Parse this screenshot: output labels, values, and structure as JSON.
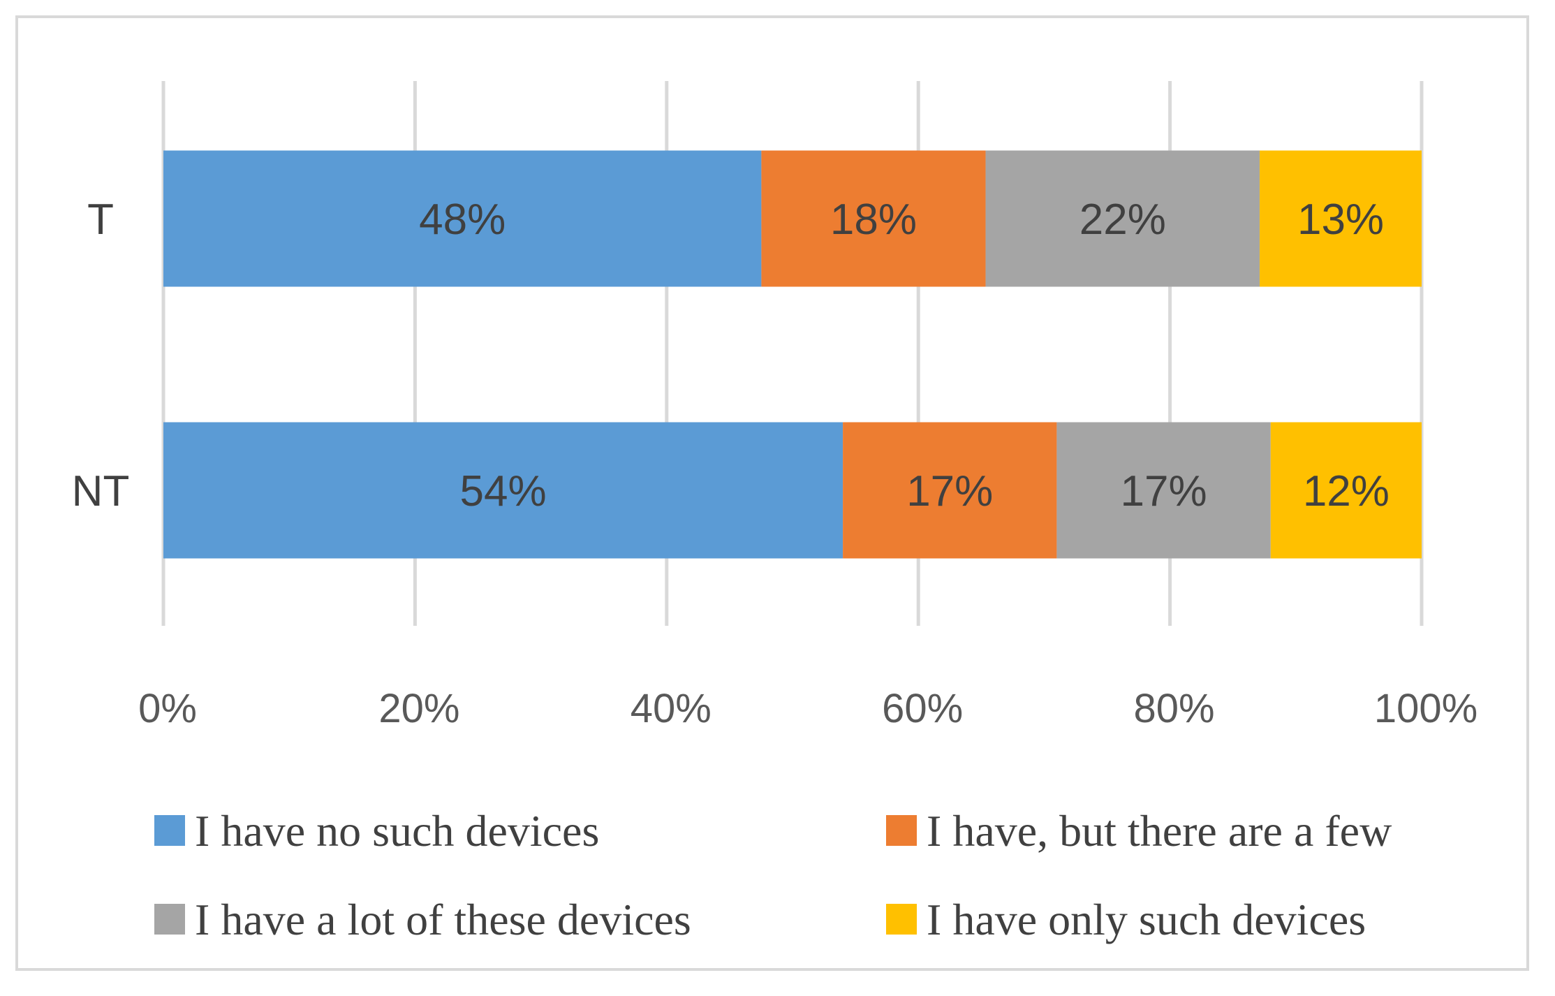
{
  "chart_data": {
    "type": "bar",
    "orientation": "horizontal",
    "stacked": "percent",
    "categories": [
      "T",
      "NT"
    ],
    "series": [
      {
        "name": "I have no such devices",
        "values": [
          48,
          54
        ],
        "labels": [
          "48%",
          "54%"
        ],
        "color": "#5b9bd5"
      },
      {
        "name": "I have, but there are a few",
        "values": [
          18,
          17
        ],
        "labels": [
          "18%",
          "17%"
        ],
        "color": "#ed7d31"
      },
      {
        "name": "I have a lot of these devices",
        "values": [
          22,
          17
        ],
        "labels": [
          "22%",
          "17%"
        ],
        "color": "#a5a5a5"
      },
      {
        "name": "I have only such devices",
        "values": [
          13,
          12
        ],
        "labels": [
          "13%",
          "12%"
        ],
        "color": "#ffc000"
      }
    ],
    "x_ticks": [
      "0%",
      "20%",
      "40%",
      "60%",
      "80%",
      "100%"
    ],
    "xlim": [
      0,
      100
    ],
    "grid": true,
    "legend_position": "bottom",
    "title": "",
    "xlabel": "",
    "ylabel": ""
  }
}
